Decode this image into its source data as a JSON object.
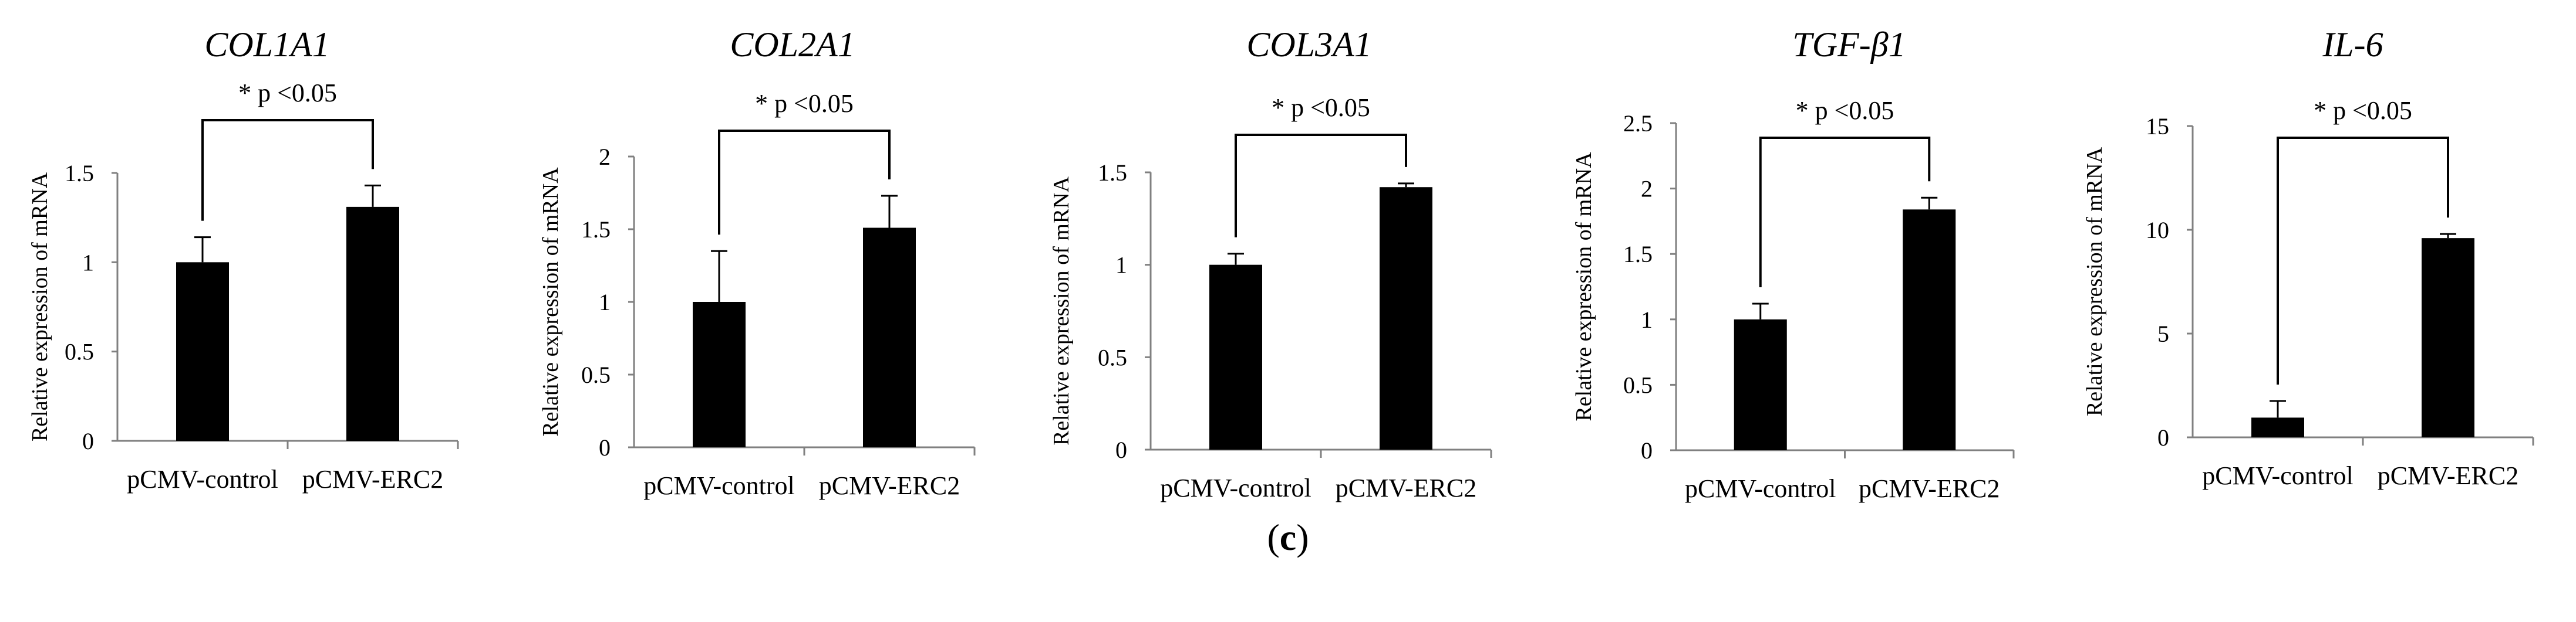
{
  "chart_data": [
    {
      "type": "bar",
      "title": "COL1A1",
      "ylabel": "Relative expression of mRNA",
      "categories": [
        "pCMV-control",
        "pCMV-ERC2"
      ],
      "values": [
        1.0,
        1.31
      ],
      "errors": [
        0.14,
        0.12
      ],
      "ylim": [
        0,
        1.5
      ],
      "yticks": [
        "0",
        "0.5",
        "1",
        "1.5"
      ],
      "annotation": "* p <0.05"
    },
    {
      "type": "bar",
      "title": "COL2A1",
      "ylabel": "Relative expression of mRNA",
      "categories": [
        "pCMV-control",
        "pCMV-ERC2"
      ],
      "values": [
        1.0,
        1.51
      ],
      "errors": [
        0.35,
        0.22
      ],
      "ylim": [
        0,
        2
      ],
      "yticks": [
        "0",
        "0.5",
        "1",
        "1.5",
        "2"
      ],
      "annotation": "* p <0.05"
    },
    {
      "type": "bar",
      "title": "COL3A1",
      "ylabel": "Relative expression of mRNA",
      "categories": [
        "pCMV-control",
        "pCMV-ERC2"
      ],
      "values": [
        1.0,
        1.42
      ],
      "errors": [
        0.06,
        0.02
      ],
      "ylim": [
        0,
        1.5
      ],
      "yticks": [
        "0",
        "0.5",
        "1",
        "1.5"
      ],
      "annotation": "* p <0.05"
    },
    {
      "type": "bar",
      "title": "TGF-β1",
      "ylabel": "Relative expression of mRNA",
      "categories": [
        "pCMV-control",
        "pCMV-ERC2"
      ],
      "values": [
        1.0,
        1.84
      ],
      "errors": [
        0.12,
        0.09
      ],
      "ylim": [
        0,
        2.5
      ],
      "yticks": [
        "0",
        "0.5",
        "1",
        "1.5",
        "2",
        "2.5"
      ],
      "annotation": "* p <0.05"
    },
    {
      "type": "bar",
      "title": "IL-6",
      "ylabel": "Relative expression of mRNA",
      "categories": [
        "pCMV-control",
        "pCMV-ERC2"
      ],
      "values": [
        0.95,
        9.6
      ],
      "errors": [
        0.8,
        0.2
      ],
      "ylim": [
        0,
        15
      ],
      "yticks": [
        "0",
        "5",
        "10",
        "15"
      ],
      "annotation": "* p <0.05"
    }
  ],
  "caption": {
    "open": "(",
    "letter": "c",
    "close": ")"
  },
  "colors": {
    "bar": "#000000",
    "axis": "#808080",
    "text": "#000000"
  }
}
